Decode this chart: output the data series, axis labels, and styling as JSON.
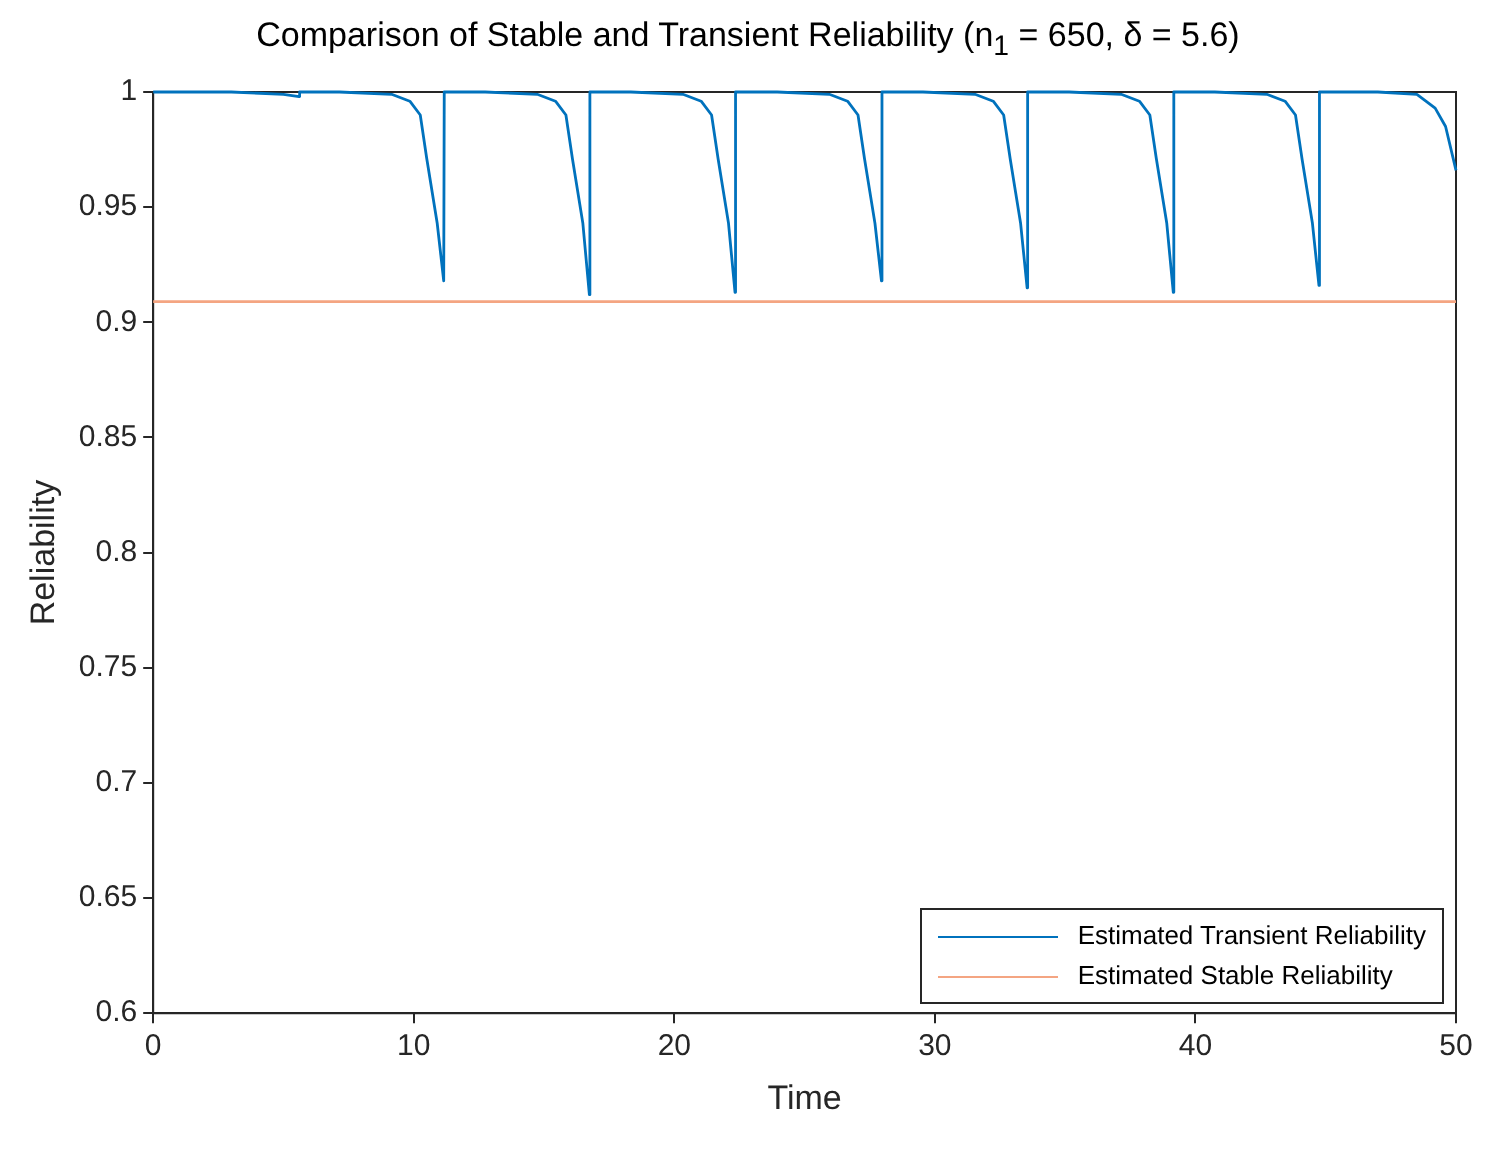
{
  "chart_data": {
    "type": "line",
    "title": "Comparison of Stable and Transient Reliability (n$_{1}$ = 650, δ = 5.6)",
    "xlabel": "Time",
    "ylabel": "Reliability",
    "xlim": [
      0,
      50
    ],
    "ylim": [
      0.6,
      1
    ],
    "xticks": [
      0,
      10,
      20,
      30,
      40,
      50
    ],
    "yticks": [
      0.6,
      0.65,
      0.7,
      0.75,
      0.8,
      0.85,
      0.9,
      0.95,
      1
    ],
    "grid": false,
    "legend": "bottom right",
    "marker": "none",
    "line_style": "solid",
    "series": [
      {
        "name": "Estimated Transient Reliability",
        "color": "#0072bd",
        "x": [
          0,
          3,
          5,
          5.6,
          5.62,
          7.15,
          9.15,
          9.85,
          10.25,
          10.5,
          10.9,
          11.15,
          11.17,
          12.74,
          14.74,
          15.44,
          15.84,
          16.09,
          16.49,
          16.74,
          16.76,
          18.33,
          20.33,
          21.03,
          21.43,
          21.68,
          22.08,
          22.33,
          22.35,
          23.95,
          25.95,
          26.65,
          27.05,
          27.3,
          27.7,
          27.95,
          27.97,
          29.54,
          31.54,
          32.24,
          32.64,
          32.89,
          33.29,
          33.54,
          33.56,
          35.15,
          37.15,
          37.85,
          38.25,
          38.5,
          38.9,
          39.15,
          39.17,
          40.74,
          42.74,
          43.44,
          43.84,
          44.09,
          44.49,
          44.74,
          44.76,
          47,
          48.5,
          49.2,
          49.6,
          50
        ],
        "values": [
          1,
          1,
          0.999,
          0.998,
          1,
          1,
          0.999,
          0.996,
          0.99,
          0.971,
          0.943,
          0.918,
          1,
          1,
          0.999,
          0.996,
          0.99,
          0.971,
          0.943,
          0.912,
          1,
          1,
          0.999,
          0.996,
          0.99,
          0.971,
          0.943,
          0.913,
          1,
          1,
          0.999,
          0.996,
          0.99,
          0.971,
          0.943,
          0.918,
          1,
          1,
          0.999,
          0.996,
          0.99,
          0.971,
          0.943,
          0.915,
          1,
          1,
          0.999,
          0.996,
          0.99,
          0.971,
          0.943,
          0.913,
          1,
          1,
          0.999,
          0.996,
          0.99,
          0.971,
          0.943,
          0.916,
          1,
          1,
          0.999,
          0.993,
          0.985,
          0.966
        ]
      },
      {
        "name": "Estimated Stable Reliability",
        "color": "#f4a582",
        "x": [
          0,
          50
        ],
        "values": [
          0.909,
          0.909
        ]
      }
    ]
  }
}
